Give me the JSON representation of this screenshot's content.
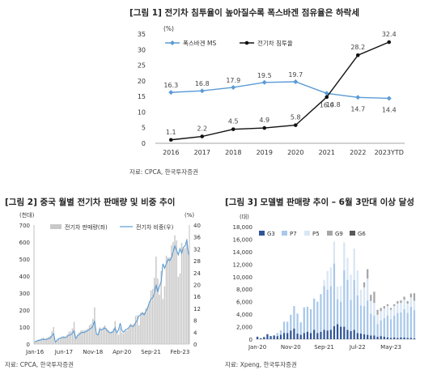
{
  "chart_data": [
    {
      "type": "line",
      "title": "[그림 1] 전기차 침투율이 높아질수록 폭스바겐 점유율은 하락세",
      "unit_label": "(%)",
      "source": "자료: CPCA, 한국투자증권",
      "categories": [
        "2016",
        "2017",
        "2018",
        "2019",
        "2020",
        "2021",
        "2022",
        "2023YTD"
      ],
      "ylim": [
        0,
        35
      ],
      "yticks": [
        "0",
        "5",
        "10",
        "15",
        "20",
        "25",
        "30",
        "35"
      ],
      "series": [
        {
          "name": "폭스바겐 MS",
          "color": "#5b9bd5",
          "marker": "diamond",
          "values": [
            16.3,
            16.8,
            17.9,
            19.5,
            19.7,
            16.0,
            14.7,
            14.4
          ],
          "labels": [
            "16.3",
            "16.8",
            "17.9",
            "19.5",
            "19.7",
            "16.0",
            "14.7",
            "14.4"
          ]
        },
        {
          "name": "전기차 침투율",
          "color": "#111111",
          "marker": "dot",
          "values": [
            1.1,
            2.2,
            4.5,
            4.9,
            5.8,
            14.8,
            28.2,
            32.4
          ],
          "labels": [
            "1.1",
            "2.2",
            "4.5",
            "4.9",
            "5.8",
            "14.8",
            "28.2",
            "32.4"
          ]
        }
      ],
      "grid": false,
      "legend_position": "top-left"
    },
    {
      "type": "bar",
      "title": "[그림 2] 중국 월별 전기차 판매량 및 비중 추이",
      "left_unit": "(천대)",
      "right_unit": "(%)",
      "source": "자료: CPCA, 한국투자증권",
      "x_ticks": [
        "Jan-16",
        "Jun-17",
        "Nov-18",
        "Apr-20",
        "Sep-21",
        "Feb-23"
      ],
      "ylim": [
        0,
        700
      ],
      "yticks": [
        "0",
        "100",
        "200",
        "300",
        "400",
        "500",
        "600",
        "700"
      ],
      "y2lim": [
        0,
        40
      ],
      "y2ticks": [
        "0",
        "4",
        "8",
        "12",
        "16",
        "20",
        "24",
        "28",
        "32",
        "36",
        "40"
      ],
      "legend": [
        "전기차 판매량(좌)",
        "전기차 비중(우)"
      ],
      "legend_position": "top",
      "bar_color": "#c8c8c8",
      "line_color": "#5b9bd5",
      "months_start": "Jan-16",
      "bar_values": [
        13,
        16,
        25,
        29,
        35,
        38,
        32,
        36,
        42,
        48,
        75,
        100,
        8,
        23,
        32,
        38,
        45,
        46,
        43,
        56,
        72,
        75,
        92,
        130,
        38,
        56,
        68,
        80,
        82,
        82,
        85,
        90,
        110,
        120,
        148,
        215,
        65,
        50,
        98,
        90,
        100,
        110,
        92,
        82,
        70,
        75,
        90,
        135,
        70,
        55,
        98,
        68,
        63,
        80,
        80,
        95,
        120,
        115,
        120,
        165,
        170,
        110,
        185,
        190,
        185,
        210,
        220,
        250,
        315,
        325,
        390,
        515,
        385,
        290,
        430,
        265,
        340,
        520,
        510,
        510,
        580,
        600,
        640,
        610,
        395,
        415,
        595,
        560,
        565,
        620,
        545
      ],
      "line_values": [
        0.8,
        1.0,
        1.2,
        1.3,
        1.5,
        1.6,
        1.5,
        1.6,
        1.8,
        2.0,
        2.8,
        3.5,
        0.6,
        1.3,
        1.8,
        2.0,
        2.2,
        2.3,
        2.2,
        2.6,
        3.0,
        3.1,
        3.6,
        4.5,
        1.8,
        2.8,
        3.2,
        3.8,
        3.9,
        3.9,
        4.2,
        4.5,
        5.0,
        5.3,
        6.0,
        7.8,
        3.5,
        3.0,
        5.0,
        4.8,
        5.0,
        5.5,
        4.8,
        4.2,
        3.8,
        3.9,
        4.2,
        5.5,
        3.8,
        4.8,
        7.0,
        4.5,
        4.0,
        4.8,
        5.0,
        5.5,
        6.3,
        5.9,
        6.0,
        7.2,
        8.0,
        9.5,
        9.8,
        10.4,
        9.8,
        11.0,
        12.0,
        13.8,
        15.2,
        15.5,
        17.0,
        20.0,
        17.5,
        19.5,
        21.0,
        27.0,
        25.5,
        27.0,
        28.5,
        28.0,
        29.0,
        31.0,
        33.0,
        31.5,
        30.0,
        32.0,
        30.5,
        32.5,
        33.0,
        35.0,
        30.0
      ]
    },
    {
      "type": "bar",
      "title": "[그림 3] 모델별 판매량 추이 – 6월 3만대 이상 달성",
      "unit_label": "(대)",
      "source": "자료: Xpeng, 한국투자증권",
      "x_ticks": [
        "Jan-20",
        "Nov-20",
        "Sep-21",
        "Jul-22",
        "May-23"
      ],
      "ylim": [
        0,
        18000
      ],
      "yticks": [
        "0",
        "2,000",
        "4,000",
        "6,000",
        "8,000",
        "10,000",
        "12,000",
        "14,000",
        "16,000",
        "18,000"
      ],
      "legend": [
        "G3",
        "P7",
        "P5",
        "G9",
        "G6"
      ],
      "legend_position": "top-left",
      "stacked": true,
      "series": [
        {
          "name": "G3",
          "color": "#2f5597",
          "values": [
            400,
            150,
            350,
            800,
            500,
            600,
            500,
            700,
            1000,
            1000,
            1400,
            1700,
            900,
            700,
            1000,
            1200,
            1000,
            1500,
            1000,
            1200,
            1500,
            1400,
            1500,
            2100,
            2400,
            2000,
            2000,
            1500,
            1300,
            1500,
            1000,
            900,
            800,
            700,
            600,
            600,
            400,
            500,
            400,
            300,
            200,
            300,
            200,
            300,
            300,
            200,
            200,
            150
          ]
        },
        {
          "name": "P7",
          "color": "#a9c8ea",
          "values": [
            0,
            0,
            0,
            0,
            0,
            0,
            500,
            700,
            1800,
            1800,
            2500,
            3600,
            3200,
            2000,
            4100,
            4000,
            3800,
            5000,
            5000,
            6000,
            7000,
            6500,
            7000,
            10000,
            4000,
            4000,
            9000,
            8000,
            5000,
            8000,
            6000,
            4500,
            4500,
            5500,
            3500,
            3200,
            2000,
            2500,
            3000,
            3500,
            3000,
            3500,
            4000,
            4000,
            4500,
            4000,
            5000,
            4500
          ]
        },
        {
          "name": "P5",
          "color": "#d9e6f4",
          "values": [
            0,
            0,
            0,
            0,
            0,
            0,
            0,
            0,
            0,
            0,
            0,
            0,
            0,
            0,
            0,
            0,
            0,
            0,
            0,
            0,
            1000,
            3000,
            3000,
            3500,
            2000,
            2500,
            4500,
            3500,
            4000,
            5000,
            4000,
            2500,
            3000,
            3500,
            2000,
            2000,
            1500,
            1500,
            1500,
            1500,
            1500,
            1500,
            1500,
            1500,
            1500,
            1500,
            1500,
            1500
          ]
        },
        {
          "name": "G9",
          "color": "#a6a6a6",
          "values": [
            0,
            0,
            0,
            0,
            0,
            0,
            0,
            0,
            0,
            0,
            0,
            0,
            0,
            0,
            0,
            0,
            0,
            0,
            0,
            0,
            0,
            0,
            0,
            0,
            0,
            0,
            0,
            0,
            0,
            0,
            0,
            0,
            800,
            1500,
            1000,
            1800,
            800,
            500,
            400,
            300,
            300,
            300,
            400,
            400,
            500,
            400,
            600,
            1200
          ]
        },
        {
          "name": "G6",
          "color": "#595959",
          "values": [
            0,
            0,
            0,
            0,
            0,
            0,
            0,
            0,
            0,
            0,
            0,
            0,
            0,
            0,
            0,
            0,
            0,
            0,
            0,
            0,
            0,
            0,
            0,
            0,
            0,
            0,
            0,
            0,
            0,
            0,
            0,
            0,
            0,
            0,
            0,
            0,
            0,
            0,
            0,
            0,
            0,
            0,
            0,
            0,
            0,
            0,
            0,
            0
          ]
        }
      ]
    }
  ]
}
